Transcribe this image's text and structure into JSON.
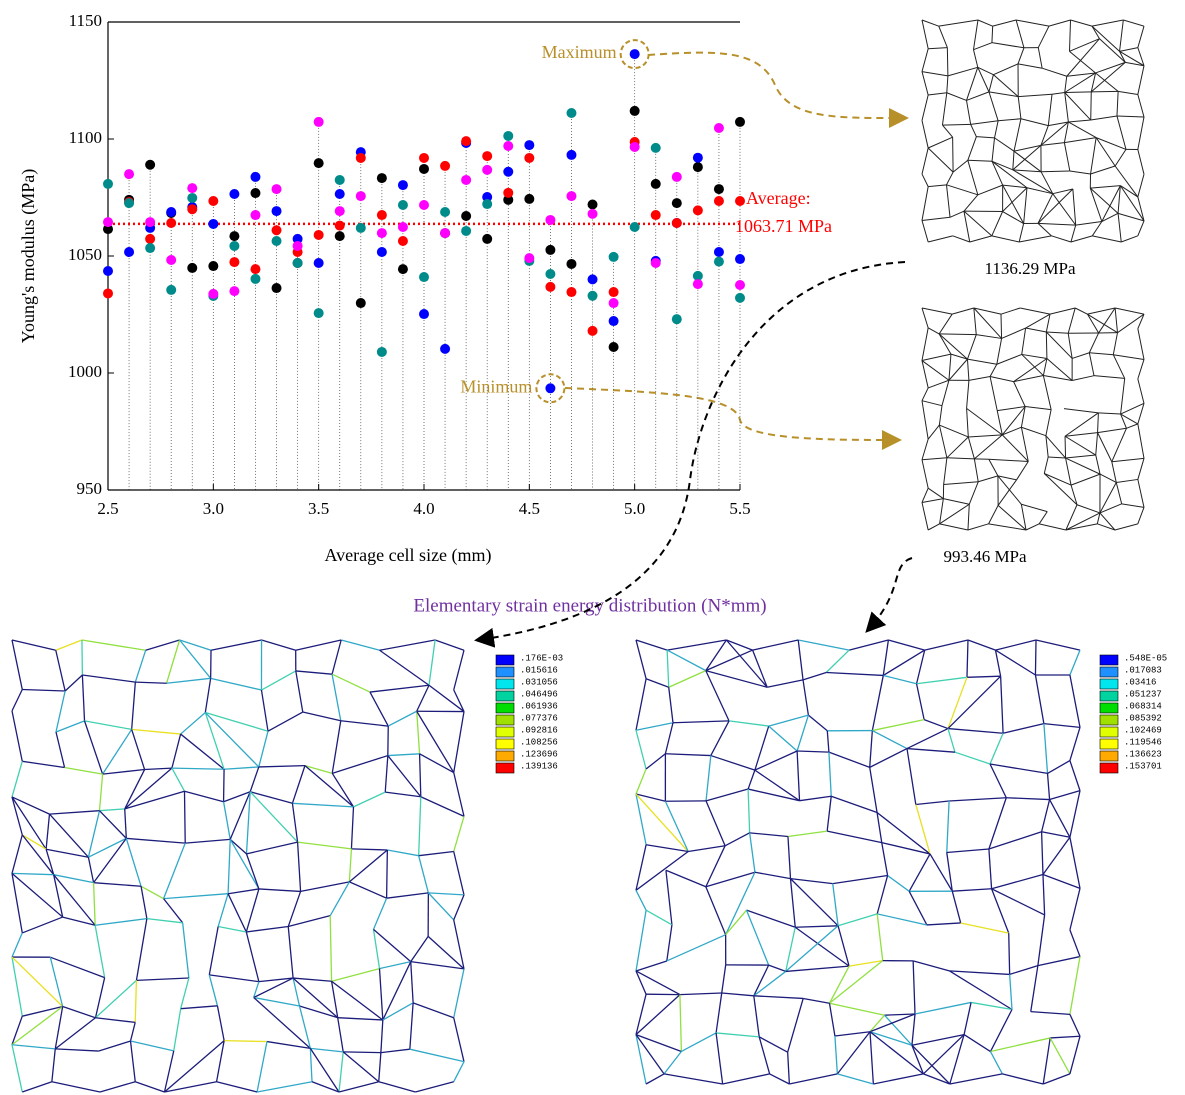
{
  "chart_data": {
    "type": "scatter",
    "x_label": "Average cell size (mm)",
    "y_label": "Young's modulus (MPa)",
    "x": [
      2.5,
      2.6,
      2.7,
      2.8,
      2.9,
      3.0,
      3.1,
      3.2,
      3.3,
      3.4,
      3.5,
      3.6,
      3.7,
      3.8,
      3.9,
      4.0,
      4.1,
      4.2,
      4.3,
      4.4,
      4.5,
      4.6,
      4.7,
      4.8,
      4.9,
      5.0,
      5.1,
      5.2,
      5.3,
      5.4,
      5.5
    ],
    "series": [
      {
        "color": "#000000",
        "values": [
          1061.5,
          1074,
          1089,
          1068.4,
          1044.9,
          1045.7,
          1058.5,
          1076.9,
          1036.3,
          1047,
          1089.7,
          1058.5,
          1029.9,
          1083.3,
          1044.4,
          1087.2,
          1059.8,
          1067.1,
          1057.3,
          1074,
          1074.4,
          1052.6,
          1046.6,
          1072,
          1011.1,
          1112,
          1080.8,
          1072.6,
          1088,
          1078.6,
          1107.3
        ]
      },
      {
        "color": "#0000ff",
        "values": [
          1043.6,
          1051.7,
          1062,
          1068.8,
          1070.9,
          1063.7,
          1076.5,
          1083.8,
          1069.2,
          1057.3,
          1047,
          1076.5,
          1094.4,
          1051.7,
          1080.3,
          1025.2,
          1010.3,
          1098.3,
          1075.2,
          1086,
          1097.4,
          993.46,
          1093.2,
          1040,
          1022.2,
          1136.29,
          1047.9,
          1064.1,
          1092,
          1051.7,
          1048.7
        ]
      },
      {
        "color": "#ff0000",
        "values": [
          1034,
          1073,
          1057.3,
          1064.1,
          1070,
          1073.5,
          1047.4,
          1044.4,
          1061,
          1051.7,
          1059,
          1063,
          1091.9,
          1067.5,
          1056.4,
          1091.9,
          1088.5,
          1099.1,
          1092.7,
          1077,
          1091.9,
          1036.8,
          1034.6,
          1018,
          1034.6,
          1098.7,
          1067.5,
          1064.1,
          1069.5,
          1073.5,
          1073.5
        ]
      },
      {
        "color": "#008b8b",
        "values": [
          1080.8,
          1072.6,
          1053.4,
          1035.5,
          1074.8,
          1032.9,
          1054.3,
          1040.2,
          1056.4,
          1047,
          1025.6,
          1082.5,
          1062,
          1009,
          1071.8,
          1041,
          1068.8,
          1060.7,
          1072.2,
          1101.3,
          1047.9,
          1042.3,
          1111.1,
          1033,
          1049.6,
          1062.4,
          1096.2,
          1023,
          1041.5,
          1047.6,
          1032.1
        ]
      },
      {
        "color": "#ff00ff",
        "values": [
          1064.5,
          1085,
          1064.5,
          1048.3,
          1079,
          1033.8,
          1035,
          1067.5,
          1078.6,
          1054.3,
          1107.3,
          1069.2,
          1075.6,
          1059.8,
          1062.4,
          1071.8,
          1059.8,
          1082.5,
          1086.8,
          1097,
          1049.1,
          1065.4,
          1075.6,
          1068,
          1029.9,
          1096.6,
          1047,
          1083.8,
          1038,
          1104.7,
          1037.6
        ]
      }
    ],
    "xlim": [
      2.5,
      5.5
    ],
    "xticks": [
      2.5,
      {
        "value": 3,
        "label": "3.0"
      },
      3.5,
      {
        "value": 4,
        "label": "4.0"
      },
      4.5,
      {
        "value": 5,
        "label": "5.0"
      },
      5.5
    ],
    "ylim": [
      950,
      1150
    ],
    "yticks": [
      950,
      1000,
      1050,
      1100,
      1150
    ],
    "average": {
      "value": 1063.71,
      "color": "#ff0000",
      "label": [
        "Average:",
        "1063.71 MPa"
      ]
    },
    "max_label": "Maximum",
    "min_label": "Minimum"
  },
  "meshes": {
    "max_caption": "1136.29 MPa",
    "min_caption": "993.46 MPa"
  },
  "strain_energy": {
    "title": "Elementary strain energy distribution (N*mm)",
    "colors": [
      "#0000ff",
      "#1e90ff",
      "#00e5ee",
      "#00d2a0",
      "#00dd00",
      "#a0e000",
      "#e0ff00",
      "#ffff00",
      "#ffaa00",
      "#ff0000"
    ],
    "legends": [
      [
        ".176E-03",
        ".015616",
        ".031056",
        ".046496",
        ".061936",
        ".077376",
        ".092816",
        ".108256",
        ".123696",
        ".139136"
      ],
      [
        ".548E-05",
        ".017083",
        ".03416",
        ".051237",
        ".068314",
        ".085392",
        ".102469",
        ".119546",
        ".136623",
        ".153701"
      ]
    ]
  }
}
